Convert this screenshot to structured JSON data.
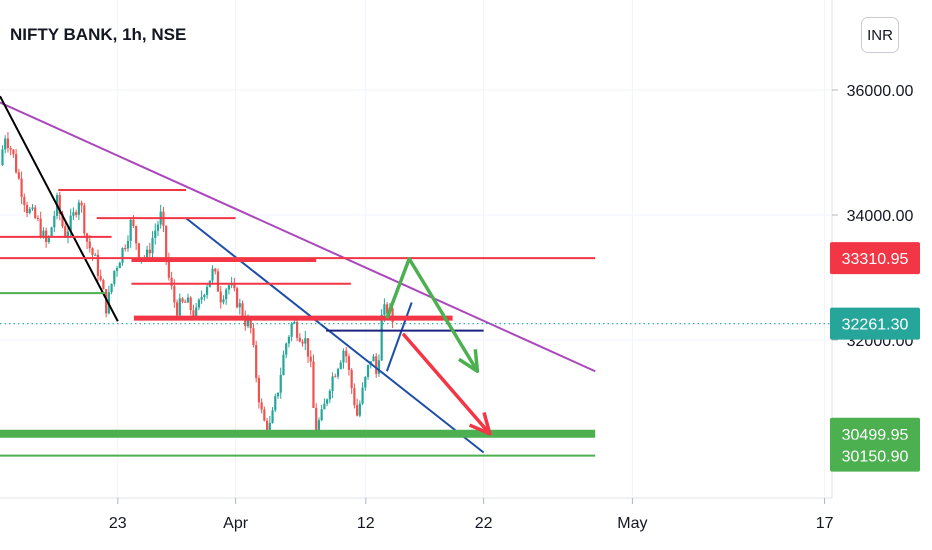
{
  "header": {
    "title": "NIFTY BANK, 1h, NSE",
    "currency": "INR"
  },
  "chart_data": {
    "type": "candlestick",
    "title": "NIFTY BANK, 1h, NSE",
    "ylim": [
      29000,
      37200
    ],
    "y_ticks": [
      "36000.00",
      "34000.00",
      "32000.00"
    ],
    "x_ticks": [
      "23",
      "Apr",
      "12",
      "22",
      "May",
      "17"
    ],
    "price_labels": [
      {
        "text": "33310.95",
        "value": 33310.95,
        "color": "#f23645"
      },
      {
        "text": "32261.30",
        "value": 32261.3,
        "color": "#26a69a"
      },
      {
        "text": "30499.95",
        "value": 30499.95,
        "color": "#4caf50"
      },
      {
        "text": "30150.90",
        "value": 30150.9,
        "color": "#4caf50"
      }
    ],
    "candles_close_path": [
      [
        0.0,
        34800
      ],
      [
        0.4,
        35300
      ],
      [
        1.0,
        35000
      ],
      [
        1.6,
        34500
      ],
      [
        2.2,
        34100
      ],
      [
        3.0,
        33900
      ],
      [
        3.8,
        33500
      ],
      [
        4.6,
        34200
      ],
      [
        5.2,
        33700
      ],
      [
        5.8,
        33900
      ],
      [
        6.4,
        34300
      ],
      [
        7.0,
        33600
      ],
      [
        7.8,
        33200
      ],
      [
        8.6,
        32500
      ],
      [
        9.2,
        33100
      ],
      [
        10.0,
        33500
      ],
      [
        10.6,
        33900
      ],
      [
        11.2,
        33400
      ],
      [
        11.8,
        33300
      ],
      [
        12.4,
        33700
      ],
      [
        13.0,
        34000
      ],
      [
        13.6,
        33000
      ],
      [
        14.2,
        32500
      ],
      [
        15.0,
        32600
      ],
      [
        15.8,
        32400
      ],
      [
        16.4,
        32800
      ],
      [
        17.2,
        33100
      ],
      [
        17.8,
        32700
      ],
      [
        18.4,
        32900
      ],
      [
        19.2,
        32600
      ],
      [
        19.8,
        32300
      ],
      [
        20.2,
        32200
      ],
      [
        20.8,
        31200
      ],
      [
        21.2,
        30700
      ],
      [
        21.8,
        30600
      ],
      [
        22.4,
        31200
      ],
      [
        23.0,
        31900
      ],
      [
        23.6,
        32300
      ],
      [
        24.0,
        32150
      ],
      [
        24.6,
        32000
      ],
      [
        25.0,
        31700
      ],
      [
        25.4,
        30550
      ],
      [
        26.0,
        30800
      ],
      [
        26.6,
        31300
      ],
      [
        27.2,
        31600
      ],
      [
        27.8,
        31900
      ],
      [
        28.2,
        31400
      ],
      [
        28.8,
        30800
      ],
      [
        29.4,
        31300
      ],
      [
        30.0,
        31800
      ],
      [
        30.4,
        31400
      ],
      [
        30.8,
        32400
      ],
      [
        31.2,
        32500
      ],
      [
        31.8,
        32250
      ]
    ],
    "lines": [
      {
        "kind": "trend",
        "color": "#ab47bc",
        "from": [
          0.0,
          35800
        ],
        "to": [
          48.0,
          31500
        ]
      },
      {
        "kind": "trend",
        "color": "#000000",
        "from": [
          0.0,
          35900
        ],
        "to": [
          9.5,
          32300
        ]
      },
      {
        "kind": "trend",
        "color": "#1e4fa8",
        "from": [
          15.0,
          33950
        ],
        "to": [
          39.0,
          30200
        ]
      },
      {
        "kind": "trend",
        "color": "#1e4fa8",
        "from": [
          31.2,
          31500
        ],
        "to": [
          33.2,
          32600
        ]
      },
      {
        "kind": "level",
        "color": "#f23645",
        "from": [
          4.7,
          34400
        ],
        "to": [
          15.0,
          34400
        ]
      },
      {
        "kind": "level",
        "color": "#f23645",
        "from": [
          7.8,
          33950
        ],
        "to": [
          19.0,
          33950
        ]
      },
      {
        "kind": "level",
        "color": "#f23645",
        "from": [
          0.0,
          33650
        ],
        "to": [
          9.0,
          33650
        ]
      },
      {
        "kind": "level",
        "color": "#f23645",
        "from": [
          0.0,
          33310.95
        ],
        "to": [
          48.0,
          33310.95
        ]
      },
      {
        "kind": "level",
        "color": "#f23645",
        "from": [
          10.6,
          33280
        ],
        "to": [
          25.5,
          33280
        ]
      },
      {
        "kind": "level",
        "color": "#f23645",
        "from": [
          10.6,
          32900
        ],
        "to": [
          28.3,
          32900
        ]
      },
      {
        "kind": "level",
        "color": "#f23645",
        "from": [
          10.8,
          32350
        ],
        "to": [
          36.5,
          32350
        ]
      },
      {
        "kind": "level",
        "color": "#1a237e",
        "from": [
          26.3,
          32150
        ],
        "to": [
          39.0,
          32150
        ]
      },
      {
        "kind": "level",
        "color": "#4caf50",
        "from": [
          0.0,
          32750
        ],
        "to": [
          8.5,
          32750
        ]
      },
      {
        "kind": "level",
        "color": "#4caf50",
        "from": [
          0.0,
          30499.95
        ],
        "to": [
          48.0,
          30499.95
        ]
      },
      {
        "kind": "level",
        "color": "#4caf50",
        "from": [
          0.0,
          30150.9
        ],
        "to": [
          48.0,
          30150.9
        ]
      }
    ],
    "arrows": [
      {
        "color": "#4caf50",
        "points": [
          [
            31.2,
            32350
          ],
          [
            33.0,
            33300
          ],
          [
            38.5,
            31500
          ]
        ]
      },
      {
        "color": "#f23645",
        "points": [
          [
            32.5,
            32100
          ],
          [
            39.5,
            30500
          ]
        ]
      }
    ]
  }
}
